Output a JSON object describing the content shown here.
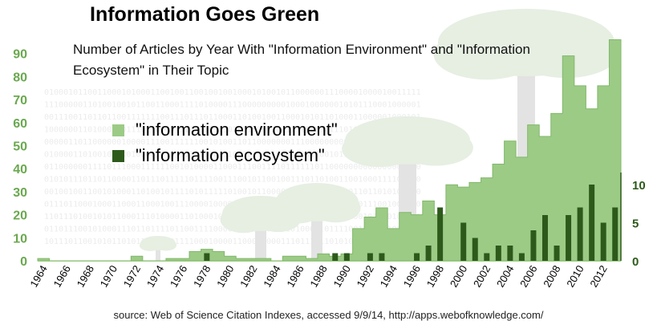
{
  "chart_data": {
    "type": "bar",
    "title": "Information Goes Green",
    "subtitle": "Number of Articles by Year With \"Information Environment\" and \"Information Ecosystem\" in Their Topic",
    "x": [
      1964,
      1965,
      1966,
      1967,
      1968,
      1969,
      1970,
      1971,
      1972,
      1973,
      1974,
      1975,
      1976,
      1977,
      1978,
      1979,
      1980,
      1981,
      1982,
      1983,
      1984,
      1985,
      1986,
      1987,
      1988,
      1989,
      1990,
      1991,
      1992,
      1993,
      1994,
      1995,
      1996,
      1997,
      1998,
      1999,
      2000,
      2001,
      2002,
      2003,
      2004,
      2005,
      2006,
      2007,
      2008,
      2009,
      2010,
      2011,
      2012,
      2013
    ],
    "x_tick_labels": [
      "1964",
      "1966",
      "1968",
      "1970",
      "1972",
      "1974",
      "1976",
      "1978",
      "1980",
      "1982",
      "1984",
      "1986",
      "1988",
      "1990",
      "1992",
      "1994",
      "1996",
      "1998",
      "2000",
      "2002",
      "2004",
      "2006",
      "2008",
      "2010",
      "2012"
    ],
    "series": [
      {
        "name": "\"information environment\"",
        "axis": "left",
        "color": "#9ccb86",
        "values": [
          1,
          0,
          0,
          0,
          0,
          0,
          0,
          0,
          2,
          0,
          0,
          1,
          1,
          4,
          5,
          4,
          2,
          1,
          1,
          1,
          0,
          2,
          2,
          1,
          3,
          2,
          3,
          14,
          19,
          23,
          14,
          21,
          20,
          26,
          20,
          33,
          32,
          34,
          36,
          42,
          52,
          45,
          59,
          54,
          64,
          89,
          76,
          66,
          76,
          96
        ]
      },
      {
        "name": "\"information ecosystem\"",
        "axis": "right",
        "color": "#2d5a1b",
        "values": [
          0,
          0,
          0,
          0,
          0,
          0,
          0,
          0,
          0,
          0,
          0,
          0,
          0,
          0,
          1,
          0,
          0,
          0,
          0,
          0,
          0,
          0,
          0,
          0,
          0,
          1,
          1,
          0,
          1,
          1,
          0,
          0,
          1,
          2,
          7,
          0,
          5,
          3,
          1,
          2,
          2,
          1,
          4,
          6,
          2,
          6,
          7,
          10,
          5,
          7
        ]
      }
    ],
    "left_axis": {
      "range": [
        0,
        95
      ],
      "ticks": [
        "0",
        "10",
        "20",
        "30",
        "40",
        "50",
        "60",
        "70",
        "80",
        "90"
      ]
    },
    "right_axis": {
      "range": [
        0,
        12
      ],
      "ticks": [
        "0",
        "5",
        "10"
      ]
    },
    "legend": {
      "placement": "center-left"
    },
    "source": "source: Web of Science Citation Indexes, accessed 9/9/14, http://apps.webofknowledge.com/"
  }
}
